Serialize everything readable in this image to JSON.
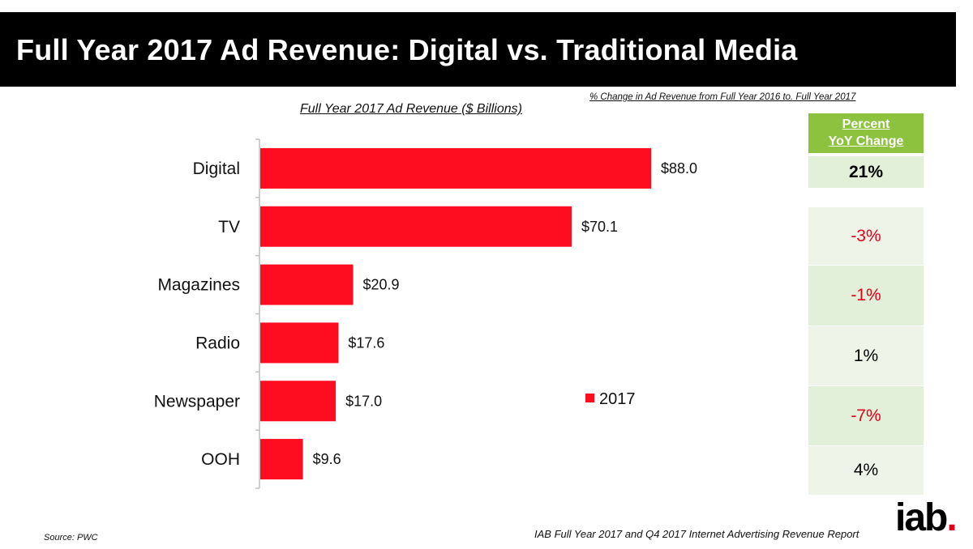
{
  "title": "Full Year 2017 Ad Revenue:  Digital vs. Traditional Media",
  "yoy_caption": "% Change in Ad Revenue from Full Year 2016 to. Full Year 2017",
  "yoy_table": {
    "header_line1": "Percent",
    "header_line2": "YoY Change",
    "rows": [
      {
        "value": "21%",
        "color": "#000000",
        "bg": "#e2efd9",
        "bold": true
      },
      {
        "value": "-3%",
        "color": "#e3001b",
        "bg": "#eef5e8",
        "bold": false
      },
      {
        "value": "-1%",
        "color": "#e3001b",
        "bg": "#e2efd9",
        "bold": false
      },
      {
        "value": "1%",
        "color": "#000000",
        "bg": "#eef5e8",
        "bold": false
      },
      {
        "value": "-7%",
        "color": "#e3001b",
        "bg": "#e2efd9",
        "bold": false
      },
      {
        "value": "4%",
        "color": "#000000",
        "bg": "#eef5e8",
        "bold": false
      }
    ]
  },
  "chart_data": {
    "type": "bar",
    "orientation": "horizontal",
    "title": "Full Year 2017 Ad Revenue ($ Billions)",
    "categories": [
      "Digital",
      "TV",
      "Magazines",
      "Radio",
      "Newspaper",
      "OOH"
    ],
    "series": [
      {
        "name": "2017",
        "values": [
          88.0,
          70.1,
          20.9,
          17.6,
          17.0,
          9.6
        ],
        "color": "#fe0c1f"
      }
    ],
    "value_labels": [
      "$88.0",
      "$70.1",
      "$20.9",
      "$17.6",
      "$17.0",
      "$9.6"
    ],
    "legend": {
      "label": "2017",
      "placement": "center-right"
    },
    "grid": false
  },
  "source": "Source: PWC",
  "report": "IAB Full Year 2017 and Q4 2017 Internet Advertising Revenue Report",
  "logo": {
    "text": "iab",
    "dot": "."
  }
}
